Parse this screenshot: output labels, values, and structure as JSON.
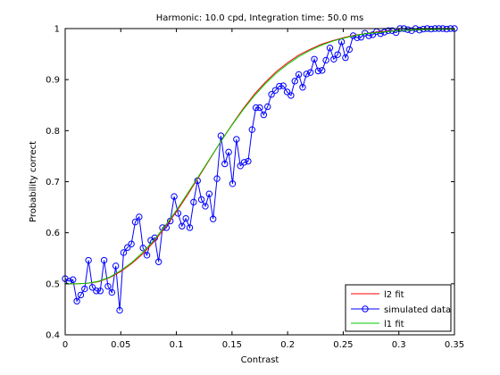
{
  "chart_data": {
    "type": "line",
    "title": "Harmonic: 10.0 cpd, Integration time: 50.0 ms",
    "xlabel": "Contrast",
    "ylabel": "Probability correct",
    "xlim": [
      0,
      0.35
    ],
    "ylim": [
      0.4,
      1.0
    ],
    "xticks": [
      0,
      0.05,
      0.1,
      0.15,
      0.2,
      0.25,
      0.3,
      0.35
    ],
    "xtick_labels": [
      "0",
      "0.05",
      "0.1",
      "0.15",
      "0.2",
      "0.25",
      "0.3",
      "0.35"
    ],
    "yticks": [
      0.4,
      0.5,
      0.6,
      0.7,
      0.8,
      0.9,
      1.0
    ],
    "ytick_labels": [
      "0.4",
      "0.5",
      "0.6",
      "0.7",
      "0.8",
      "0.9",
      "1"
    ],
    "grid": false,
    "legend_position": "bottom-right",
    "series": [
      {
        "name": "l2 fit",
        "color": "#ff0000",
        "marker": "none",
        "x": [
          0,
          0.01,
          0.02,
          0.03,
          0.04,
          0.05,
          0.06,
          0.07,
          0.08,
          0.09,
          0.1,
          0.11,
          0.12,
          0.13,
          0.14,
          0.15,
          0.16,
          0.17,
          0.18,
          0.19,
          0.2,
          0.21,
          0.22,
          0.23,
          0.24,
          0.25,
          0.26,
          0.27,
          0.28,
          0.29,
          0.3,
          0.31,
          0.32,
          0.33,
          0.34,
          0.35
        ],
        "y": [
          0.5,
          0.5,
          0.501,
          0.504,
          0.512,
          0.524,
          0.54,
          0.559,
          0.583,
          0.611,
          0.641,
          0.674,
          0.709,
          0.744,
          0.779,
          0.812,
          0.843,
          0.871,
          0.895,
          0.916,
          0.933,
          0.948,
          0.959,
          0.969,
          0.976,
          0.982,
          0.987,
          0.99,
          0.993,
          0.995,
          0.996,
          0.997,
          0.998,
          0.998,
          0.999,
          0.999
        ]
      },
      {
        "name": "simulated data",
        "color": "#0000ff",
        "marker": "circle",
        "x": [
          0.0,
          0.0035,
          0.007,
          0.0105,
          0.014,
          0.0175,
          0.021,
          0.0245,
          0.028,
          0.0315,
          0.035,
          0.0385,
          0.042,
          0.0455,
          0.049,
          0.0525,
          0.056,
          0.0595,
          0.063,
          0.0665,
          0.07,
          0.0735,
          0.077,
          0.0805,
          0.084,
          0.0875,
          0.091,
          0.0945,
          0.098,
          0.1015,
          0.105,
          0.1085,
          0.112,
          0.1155,
          0.119,
          0.1225,
          0.126,
          0.1295,
          0.133,
          0.1365,
          0.14,
          0.1435,
          0.147,
          0.1505,
          0.154,
          0.1575,
          0.161,
          0.1645,
          0.168,
          0.1715,
          0.175,
          0.1785,
          0.182,
          0.1855,
          0.189,
          0.1925,
          0.196,
          0.1995,
          0.203,
          0.2065,
          0.21,
          0.2135,
          0.217,
          0.2205,
          0.224,
          0.2275,
          0.231,
          0.2345,
          0.238,
          0.2415,
          0.245,
          0.2485,
          0.252,
          0.2555,
          0.259,
          0.2625,
          0.266,
          0.2695,
          0.273,
          0.2765,
          0.28,
          0.2835,
          0.287,
          0.2905,
          0.294,
          0.2975,
          0.301,
          0.3045,
          0.308,
          0.3115,
          0.315,
          0.3185,
          0.322,
          0.3255,
          0.329,
          0.3325,
          0.336,
          0.3395,
          0.343,
          0.3465,
          0.35
        ],
        "y": [
          0.51,
          0.505,
          0.508,
          0.466,
          0.478,
          0.49,
          0.546,
          0.493,
          0.486,
          0.486,
          0.546,
          0.495,
          0.483,
          0.535,
          0.448,
          0.561,
          0.571,
          0.578,
          0.621,
          0.631,
          0.57,
          0.556,
          0.585,
          0.59,
          0.543,
          0.61,
          0.61,
          0.623,
          0.671,
          0.638,
          0.613,
          0.628,
          0.61,
          0.66,
          0.702,
          0.665,
          0.652,
          0.676,
          0.627,
          0.706,
          0.79,
          0.735,
          0.758,
          0.696,
          0.783,
          0.731,
          0.738,
          0.74,
          0.802,
          0.845,
          0.845,
          0.831,
          0.847,
          0.871,
          0.879,
          0.887,
          0.888,
          0.876,
          0.869,
          0.897,
          0.91,
          0.885,
          0.911,
          0.914,
          0.94,
          0.917,
          0.918,
          0.938,
          0.962,
          0.94,
          0.949,
          0.974,
          0.943,
          0.959,
          0.986,
          0.982,
          0.983,
          0.991,
          0.986,
          0.988,
          0.994,
          0.99,
          0.993,
          0.996,
          0.996,
          0.992,
          1.0,
          1.0,
          0.998,
          0.996,
          1.0,
          0.997,
          0.999,
          1.0,
          0.999,
          1.0,
          1.0,
          1.0,
          0.999,
          1.0,
          1.0
        ]
      },
      {
        "name": "l1 fit",
        "color": "#00cc00",
        "marker": "none",
        "x": [
          0,
          0.01,
          0.02,
          0.03,
          0.04,
          0.05,
          0.06,
          0.07,
          0.08,
          0.09,
          0.1,
          0.11,
          0.12,
          0.13,
          0.14,
          0.15,
          0.16,
          0.17,
          0.18,
          0.19,
          0.2,
          0.21,
          0.22,
          0.23,
          0.24,
          0.25,
          0.26,
          0.27,
          0.28,
          0.29,
          0.3,
          0.31,
          0.32,
          0.33,
          0.34,
          0.35
        ],
        "y": [
          0.5,
          0.5,
          0.501,
          0.505,
          0.513,
          0.526,
          0.542,
          0.562,
          0.586,
          0.614,
          0.644,
          0.677,
          0.711,
          0.745,
          0.779,
          0.811,
          0.841,
          0.868,
          0.892,
          0.913,
          0.93,
          0.945,
          0.957,
          0.967,
          0.975,
          0.981,
          0.986,
          0.99,
          0.992,
          0.994,
          0.996,
          0.997,
          0.998,
          0.998,
          0.999,
          0.999
        ]
      }
    ]
  }
}
